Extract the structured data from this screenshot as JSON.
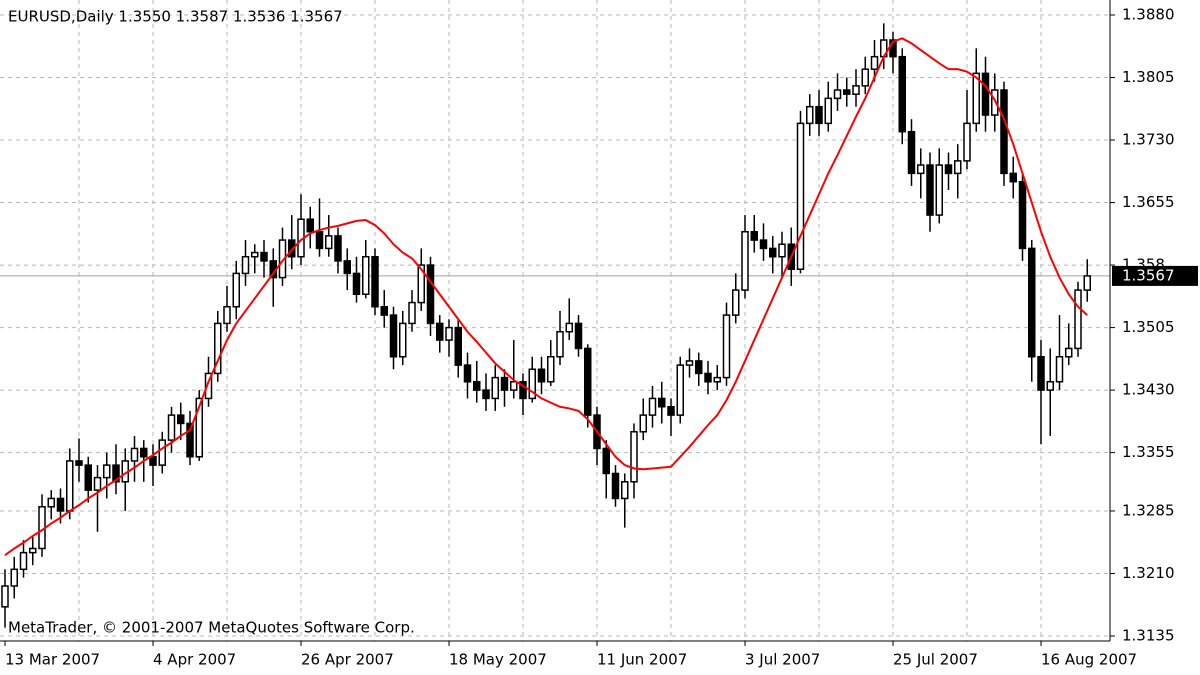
{
  "chart_data": {
    "type": "candlestick",
    "title": "EURUSD,Daily  1.3550 1.3587 1.3536 1.3567",
    "watermark": "MetaTrader, © 2001-2007 MetaQuotes Software Corp.",
    "categories": [
      "13 Mar 2007",
      null,
      null,
      null,
      null,
      null,
      null,
      null,
      null,
      null,
      null,
      null,
      null,
      null,
      null,
      null,
      "4 Apr 2007",
      null,
      null,
      null,
      null,
      null,
      null,
      null,
      null,
      null,
      null,
      null,
      null,
      null,
      null,
      null,
      "26 Apr 2007",
      null,
      null,
      null,
      null,
      null,
      null,
      null,
      null,
      null,
      null,
      null,
      null,
      null,
      null,
      null,
      "18 May 2007",
      null,
      null,
      null,
      null,
      null,
      null,
      null,
      null,
      null,
      null,
      null,
      null,
      null,
      null,
      null,
      "11 Jun 2007",
      null,
      null,
      null,
      null,
      null,
      null,
      null,
      null,
      null,
      null,
      null,
      null,
      null,
      null,
      null,
      "3 Jul 2007",
      null,
      null,
      null,
      null,
      null,
      null,
      null,
      null,
      null,
      null,
      null,
      null,
      null,
      null,
      null,
      "25 Jul 2007",
      null,
      null,
      null,
      null,
      null,
      null,
      null,
      null,
      null,
      null,
      null,
      null,
      null,
      null,
      null,
      "16 Aug 2007",
      null,
      null,
      null,
      null,
      null
    ],
    "open": [
      1.317,
      1.3195,
      1.3215,
      1.3235,
      1.324,
      1.329,
      1.33,
      1.3285,
      1.3345,
      1.334,
      1.331,
      1.3325,
      1.334,
      1.332,
      1.3345,
      1.336,
      1.335,
      1.334,
      1.337,
      1.34,
      1.339,
      1.335,
      1.342,
      1.345,
      1.351,
      1.353,
      1.357,
      1.359,
      1.3595,
      1.3585,
      1.3565,
      1.361,
      1.359,
      1.3635,
      1.362,
      1.36,
      1.3615,
      1.3585,
      1.357,
      1.3545,
      1.359,
      1.353,
      1.352,
      1.347,
      1.351,
      1.3535,
      1.358,
      1.351,
      1.349,
      1.3505,
      1.346,
      1.344,
      1.343,
      1.342,
      1.3445,
      1.343,
      1.344,
      1.342,
      1.3455,
      1.344,
      1.347,
      1.35,
      1.351,
      1.348,
      1.34,
      1.336,
      1.333,
      1.33,
      1.332,
      1.338,
      1.34,
      1.342,
      1.341,
      1.34,
      1.346,
      1.3465,
      1.345,
      1.344,
      1.3445,
      1.352,
      1.355,
      1.362,
      1.361,
      1.36,
      1.359,
      1.3605,
      1.3575,
      1.375,
      1.377,
      1.375,
      1.378,
      1.379,
      1.3785,
      1.3795,
      1.3815,
      1.383,
      1.385,
      1.383,
      1.374,
      1.369,
      1.37,
      1.364,
      1.37,
      1.369,
      1.3705,
      1.375,
      1.381,
      1.376,
      1.379,
      1.369,
      1.368,
      1.36,
      1.347,
      1.343,
      1.344,
      1.347,
      1.348,
      1.355
    ],
    "high": [
      1.3215,
      1.323,
      1.325,
      1.3255,
      1.3305,
      1.331,
      1.3312,
      1.336,
      1.3372,
      1.335,
      1.334,
      1.3355,
      1.3365,
      1.336,
      1.3375,
      1.337,
      1.3365,
      1.338,
      1.341,
      1.3415,
      1.3405,
      1.343,
      1.347,
      1.3525,
      1.3555,
      1.3585,
      1.361,
      1.3605,
      1.361,
      1.36,
      1.3625,
      1.364,
      1.3665,
      1.365,
      1.366,
      1.364,
      1.3625,
      1.36,
      1.359,
      1.361,
      1.36,
      1.355,
      1.353,
      1.3525,
      1.355,
      1.36,
      1.359,
      1.352,
      1.3515,
      1.3515,
      1.3475,
      1.3465,
      1.345,
      1.346,
      1.3455,
      1.349,
      1.345,
      1.347,
      1.347,
      1.349,
      1.3525,
      1.354,
      1.352,
      1.3485,
      1.341,
      1.337,
      1.334,
      1.333,
      1.339,
      1.342,
      1.3435,
      1.344,
      1.342,
      1.347,
      1.348,
      1.3475,
      1.3465,
      1.346,
      1.3535,
      1.357,
      1.364,
      1.364,
      1.363,
      1.3615,
      1.362,
      1.3625,
      1.3765,
      1.3785,
      1.379,
      1.38,
      1.381,
      1.3805,
      1.3815,
      1.383,
      1.385,
      1.387,
      1.386,
      1.384,
      1.3755,
      1.372,
      1.3715,
      1.372,
      1.3715,
      1.3725,
      1.379,
      1.384,
      1.383,
      1.381,
      1.38,
      1.371,
      1.369,
      1.361,
      1.349,
      1.348,
      1.352,
      1.351,
      1.356,
      1.3587
    ],
    "low": [
      1.3145,
      1.318,
      1.3205,
      1.322,
      1.323,
      1.3275,
      1.327,
      1.3275,
      1.332,
      1.3295,
      1.326,
      1.33,
      1.3305,
      1.3285,
      1.332,
      1.332,
      1.3315,
      1.333,
      1.3355,
      1.337,
      1.334,
      1.3345,
      1.341,
      1.344,
      1.35,
      1.3515,
      1.3555,
      1.357,
      1.3565,
      1.353,
      1.3555,
      1.3575,
      1.358,
      1.36,
      1.359,
      1.359,
      1.357,
      1.355,
      1.3535,
      1.354,
      1.352,
      1.3505,
      1.3455,
      1.346,
      1.35,
      1.3525,
      1.3495,
      1.3475,
      1.347,
      1.3445,
      1.342,
      1.3415,
      1.3405,
      1.3405,
      1.341,
      1.342,
      1.34,
      1.3415,
      1.3425,
      1.3435,
      1.346,
      1.349,
      1.347,
      1.3385,
      1.334,
      1.33,
      1.329,
      1.3265,
      1.33,
      1.337,
      1.3385,
      1.339,
      1.3375,
      1.339,
      1.3445,
      1.3435,
      1.3425,
      1.343,
      1.3435,
      1.351,
      1.354,
      1.3595,
      1.3585,
      1.357,
      1.3565,
      1.3555,
      1.357,
      1.3735,
      1.3735,
      1.374,
      1.3765,
      1.377,
      1.377,
      1.3785,
      1.38,
      1.3815,
      1.381,
      1.3725,
      1.3675,
      1.366,
      1.362,
      1.363,
      1.367,
      1.366,
      1.3695,
      1.374,
      1.374,
      1.374,
      1.3675,
      1.366,
      1.3585,
      1.344,
      1.3365,
      1.3375,
      1.343,
      1.346,
      1.347,
      1.3536
    ],
    "close": [
      1.3195,
      1.3215,
      1.3235,
      1.324,
      1.329,
      1.33,
      1.3285,
      1.3345,
      1.334,
      1.331,
      1.3325,
      1.334,
      1.332,
      1.3345,
      1.336,
      1.335,
      1.334,
      1.337,
      1.34,
      1.339,
      1.335,
      1.342,
      1.345,
      1.351,
      1.353,
      1.357,
      1.359,
      1.3595,
      1.3585,
      1.3565,
      1.361,
      1.359,
      1.3635,
      1.362,
      1.36,
      1.3615,
      1.3585,
      1.357,
      1.3545,
      1.359,
      1.353,
      1.352,
      1.347,
      1.351,
      1.3535,
      1.358,
      1.351,
      1.349,
      1.3505,
      1.346,
      1.344,
      1.343,
      1.342,
      1.3445,
      1.343,
      1.344,
      1.342,
      1.3455,
      1.344,
      1.347,
      1.35,
      1.351,
      1.348,
      1.34,
      1.336,
      1.333,
      1.33,
      1.332,
      1.338,
      1.34,
      1.342,
      1.341,
      1.34,
      1.346,
      1.3465,
      1.345,
      1.344,
      1.3445,
      1.352,
      1.355,
      1.362,
      1.361,
      1.36,
      1.359,
      1.3605,
      1.3575,
      1.375,
      1.377,
      1.375,
      1.378,
      1.379,
      1.3785,
      1.3795,
      1.3815,
      1.383,
      1.385,
      1.383,
      1.374,
      1.369,
      1.37,
      1.364,
      1.37,
      1.369,
      1.3705,
      1.375,
      1.381,
      1.376,
      1.379,
      1.369,
      1.368,
      1.36,
      1.347,
      1.343,
      1.344,
      1.347,
      1.348,
      1.355,
      1.3567
    ],
    "ma": {
      "color": "#ff0000",
      "values": [
        1.3232,
        1.324,
        1.3247,
        1.3255,
        1.3262,
        1.327,
        1.3277,
        1.3285,
        1.3292,
        1.33,
        1.3307,
        1.3315,
        1.3322,
        1.333,
        1.3337,
        1.3345,
        1.3352,
        1.336,
        1.3367,
        1.3375,
        1.3382,
        1.341,
        1.344,
        1.3465,
        1.349,
        1.351,
        1.3525,
        1.354,
        1.3555,
        1.357,
        1.3585,
        1.3598,
        1.361,
        1.3618,
        1.3622,
        1.3625,
        1.3627,
        1.363,
        1.3633,
        1.3634,
        1.3628,
        1.3618,
        1.3605,
        1.3595,
        1.3588,
        1.3575,
        1.356,
        1.3545,
        1.353,
        1.3515,
        1.35,
        1.3488,
        1.3475,
        1.3462,
        1.3452,
        1.3442,
        1.3435,
        1.3428,
        1.342,
        1.3415,
        1.341,
        1.3408,
        1.3405,
        1.3395,
        1.338,
        1.3365,
        1.335,
        1.334,
        1.3336,
        1.3335,
        1.3336,
        1.3337,
        1.3338,
        1.335,
        1.3362,
        1.3375,
        1.3388,
        1.34,
        1.3418,
        1.344,
        1.3465,
        1.349,
        1.3515,
        1.354,
        1.3565,
        1.359,
        1.3615,
        1.364,
        1.3665,
        1.369,
        1.3712,
        1.3735,
        1.3758,
        1.378,
        1.3805,
        1.383,
        1.3848,
        1.3852,
        1.3846,
        1.3838,
        1.383,
        1.3822,
        1.3815,
        1.3815,
        1.3812,
        1.3805,
        1.3795,
        1.3778,
        1.3755,
        1.3725,
        1.369,
        1.3655,
        1.362,
        1.359,
        1.3565,
        1.3545,
        1.353,
        1.352
      ]
    },
    "candle_color": "#000000",
    "ylim": [
      1.3129,
      1.3898
    ],
    "yticks": [
      {
        "value": 1.388,
        "label": "1.3880"
      },
      1.3805,
      {
        "value": 1.373,
        "label": "1.3730"
      },
      1.3655,
      1.358,
      1.3505,
      {
        "value": 1.343,
        "label": "1.3430"
      },
      1.3355,
      1.3285,
      {
        "value": 1.321,
        "label": "1.3210"
      },
      1.3135
    ],
    "grid": true
  }
}
